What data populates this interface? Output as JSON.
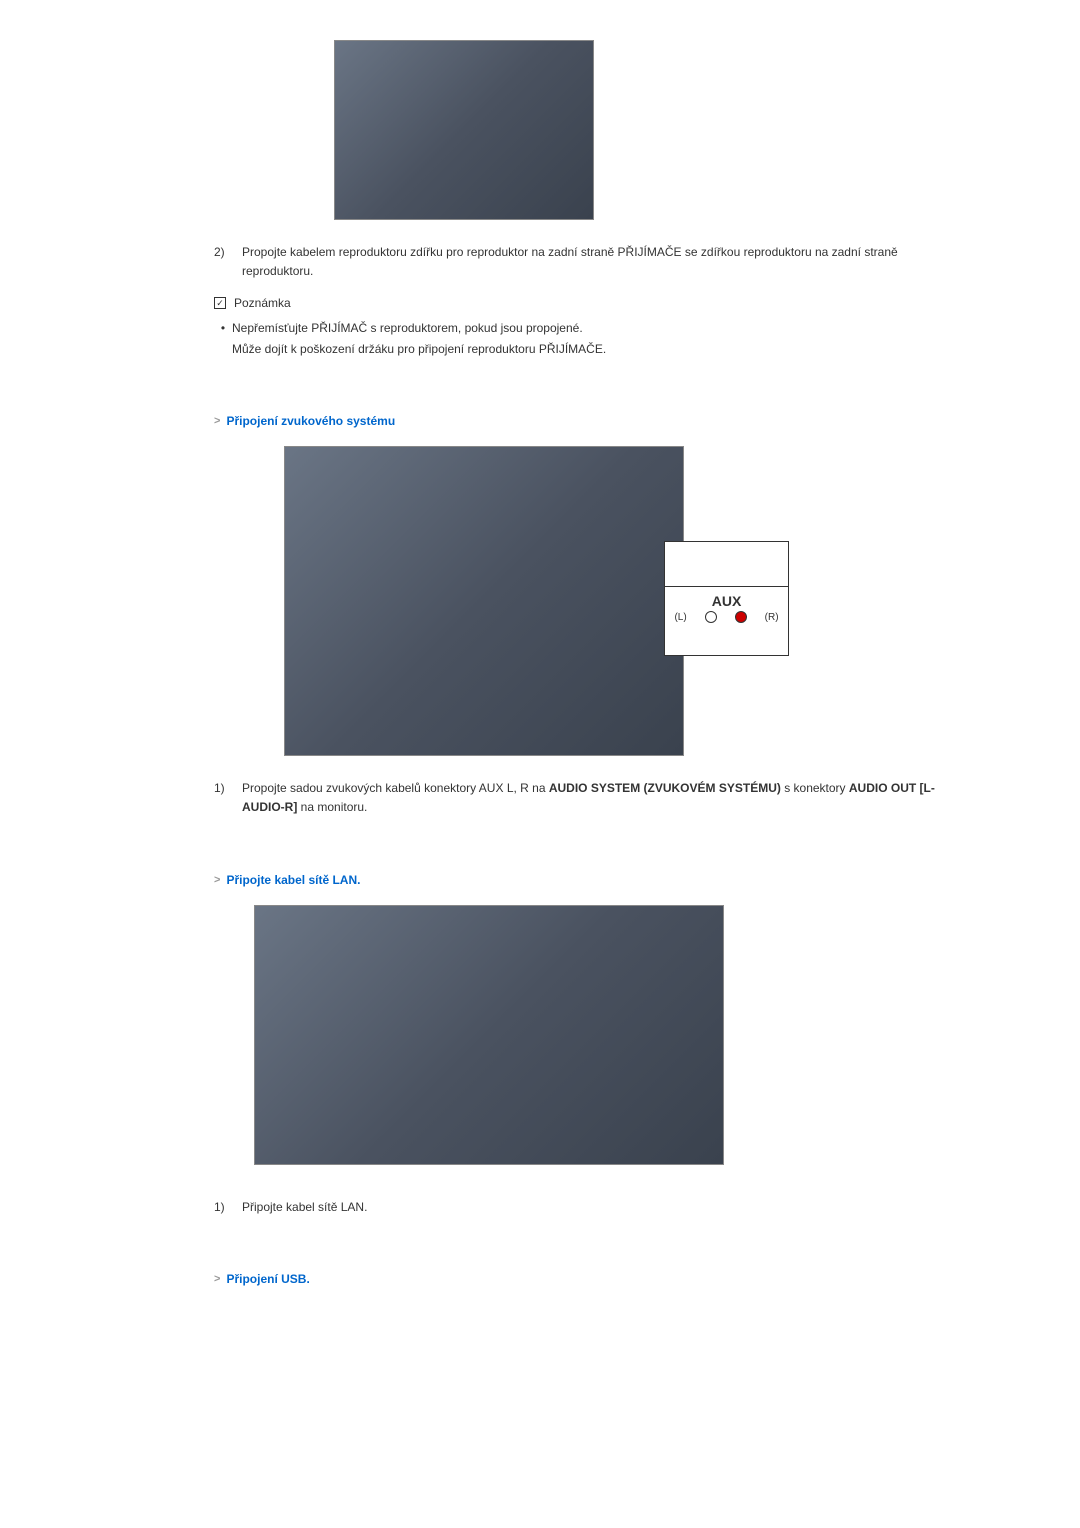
{
  "step2": {
    "num": "2)",
    "text": "Propojte kabelem reproduktoru zdířku pro reproduktor na zadní straně PŘIJÍMAČE se zdířkou reproduktoru na zadní straně reproduktoru."
  },
  "note": {
    "label": "Poznámka",
    "line1": "Nepřemísťujte PŘIJÍMAČ s reproduktorem, pokud jsou propojené.",
    "line2": "Může dojít k poškození držáku pro připojení reproduktoru PŘIJÍMAČE."
  },
  "section_audio": {
    "heading": "Připojení zvukového systému",
    "aux_label": "AUX",
    "aux_l": "(L)",
    "aux_r": "(R)",
    "step1_num": "1)",
    "step1_pre": "Propojte sadou zvukových kabelů konektory AUX L, R na ",
    "step1_bold1": "AUDIO SYSTEM (ZVUKOVÉM SYSTÉMU)",
    "step1_mid": " s konektory ",
    "step1_bold2": "AUDIO OUT [L-AUDIO-R]",
    "step1_post": " na monitoru."
  },
  "section_lan": {
    "heading": "Připojte kabel sítě LAN.",
    "step1_num": "1)",
    "step1_text": "Připojte kabel sítě LAN."
  },
  "section_usb": {
    "heading": "Připojení USB."
  },
  "colors": {
    "link": "#0066cc",
    "text": "#333333"
  }
}
